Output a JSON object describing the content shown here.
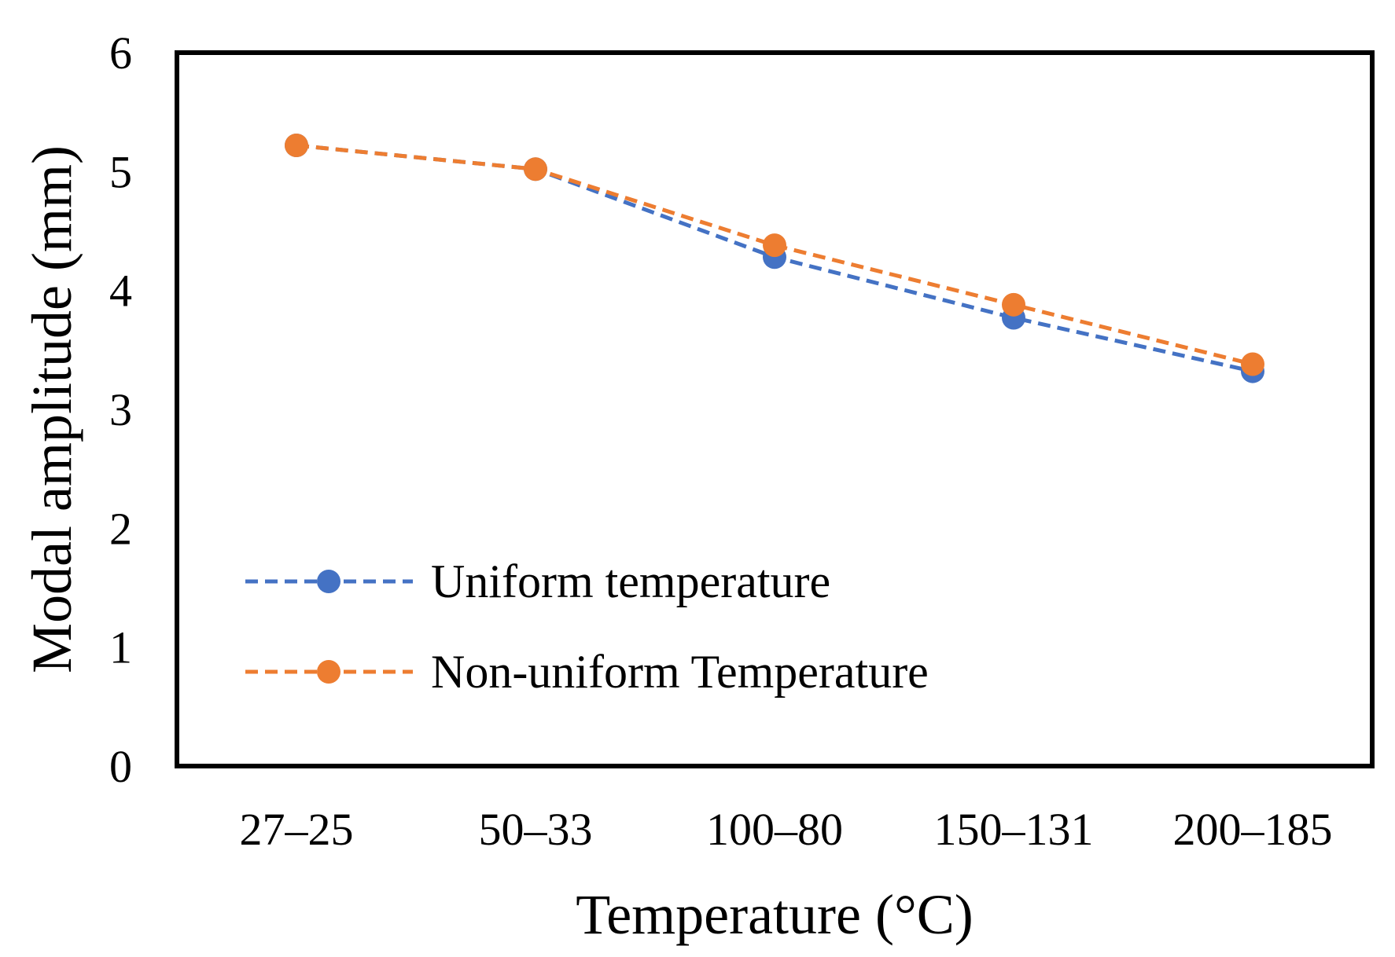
{
  "chart_data": {
    "type": "line",
    "title": "",
    "xlabel": "Temperature (°C)",
    "ylabel": "Modal amplitude (mm)",
    "categories": [
      "27–25",
      "50–33",
      "100–80",
      "150–131",
      "200–185"
    ],
    "ylim": [
      0,
      6
    ],
    "yticks": [
      "0",
      "1",
      "2",
      "3",
      "4",
      "5",
      "6"
    ],
    "grid": false,
    "legend_position": "bottom-left",
    "series": [
      {
        "name": "Uniform temperature",
        "color": "#4472C4",
        "line_style": "dashed",
        "marker": "circle",
        "values": [
          5.22,
          5.02,
          4.28,
          3.77,
          3.32
        ]
      },
      {
        "name": "Non-uniform Temperature",
        "color": "#ED7D31",
        "line_style": "dashed",
        "marker": "circle",
        "values": [
          5.22,
          5.02,
          4.38,
          3.88,
          3.38
        ]
      }
    ]
  }
}
